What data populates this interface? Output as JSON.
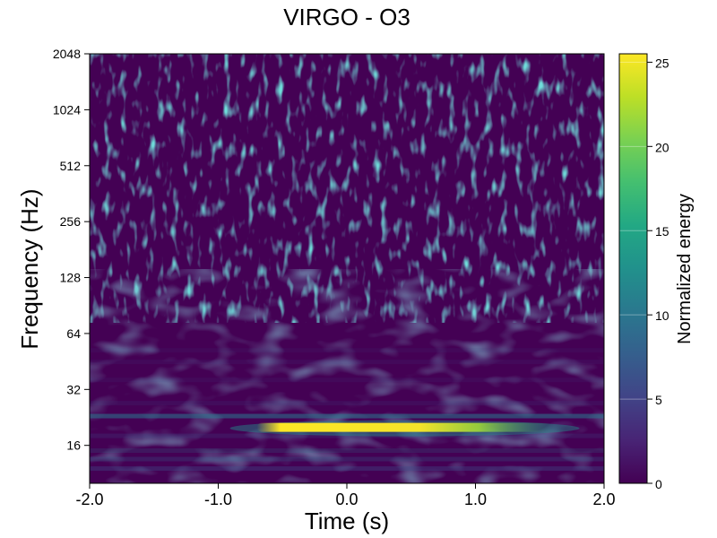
{
  "chart_data": {
    "type": "heatmap",
    "title": "VIRGO - O3",
    "xlabel": "Time (s)",
    "ylabel": "Frequency (Hz)",
    "x_ticks": [
      "-2.0",
      "-1.0",
      "0.0",
      "1.0",
      "2.0"
    ],
    "x_tick_values": [
      -2,
      -1,
      0,
      1,
      2
    ],
    "xlim": [
      -2,
      2
    ],
    "y_scale": "log2",
    "y_ticks": [
      "16",
      "32",
      "64",
      "128",
      "256",
      "512",
      "1024",
      "2048"
    ],
    "y_tick_values": [
      16,
      32,
      64,
      128,
      256,
      512,
      1024,
      2048
    ],
    "ylim": [
      10,
      2048
    ],
    "colorbar": {
      "label": "Normalized energy",
      "colormap": "viridis",
      "ticks": [
        "0",
        "5",
        "10",
        "15",
        "20",
        "25"
      ],
      "tick_values": [
        0,
        5,
        10,
        15,
        20,
        25
      ],
      "range": [
        0,
        25.5
      ]
    },
    "features": [
      {
        "label": "signal track",
        "t_start": -0.7,
        "t_end": 1.6,
        "freq_hz": 20,
        "peak_energy": 25
      },
      {
        "label": "secondary band",
        "t_start": -2.0,
        "t_end": 2.0,
        "freq_hz": 23,
        "peak_energy": 8
      }
    ]
  }
}
